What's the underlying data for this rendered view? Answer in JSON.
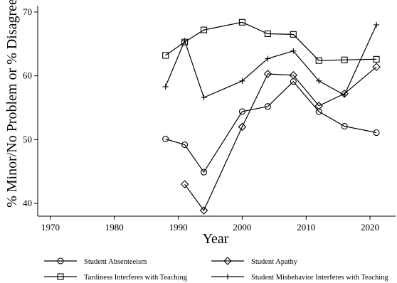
{
  "chart_data": {
    "type": "line",
    "xlabel": "Year",
    "ylabel": "% Minor/No Problem or % Disagree",
    "xlim": [
      1968,
      2024
    ],
    "ylim": [
      38,
      71
    ],
    "xticks": [
      1970,
      1980,
      1990,
      2000,
      2010,
      2020
    ],
    "yticks": [
      40,
      50,
      60,
      70
    ],
    "grid": false,
    "legend_position": "bottom",
    "series": [
      {
        "name": "Student Absenteeism",
        "marker": "circle",
        "x": [
          1988,
          1991,
          1994,
          2000,
          2004,
          2008,
          2012,
          2016,
          2021
        ],
        "y": [
          50.1,
          49.2,
          44.9,
          54.4,
          55.2,
          59.1,
          54.4,
          52.1,
          51.1
        ]
      },
      {
        "name": "Student Apathy",
        "marker": "diamond",
        "x": [
          1991,
          1994,
          2000,
          2004,
          2008,
          2012,
          2016,
          2021
        ],
        "y": [
          43.0,
          38.9,
          52.0,
          60.3,
          60.1,
          55.3,
          57.2,
          61.4
        ]
      },
      {
        "name": "Tardiness Interferes with Teaching",
        "marker": "square",
        "x": [
          1988,
          1991,
          1994,
          2000,
          2004,
          2008,
          2012,
          2016,
          2021
        ],
        "y": [
          63.2,
          65.3,
          67.2,
          68.4,
          66.6,
          66.5,
          62.4,
          62.5,
          62.6
        ]
      },
      {
        "name": "Student Misbehavior Interferes with Teaching",
        "marker": "plus",
        "x": [
          1988,
          1991,
          1994,
          2000,
          2004,
          2008,
          2012,
          2016,
          2021
        ],
        "y": [
          58.3,
          65.5,
          56.6,
          59.2,
          62.7,
          63.9,
          59.2,
          57.0,
          68.0
        ]
      }
    ]
  }
}
